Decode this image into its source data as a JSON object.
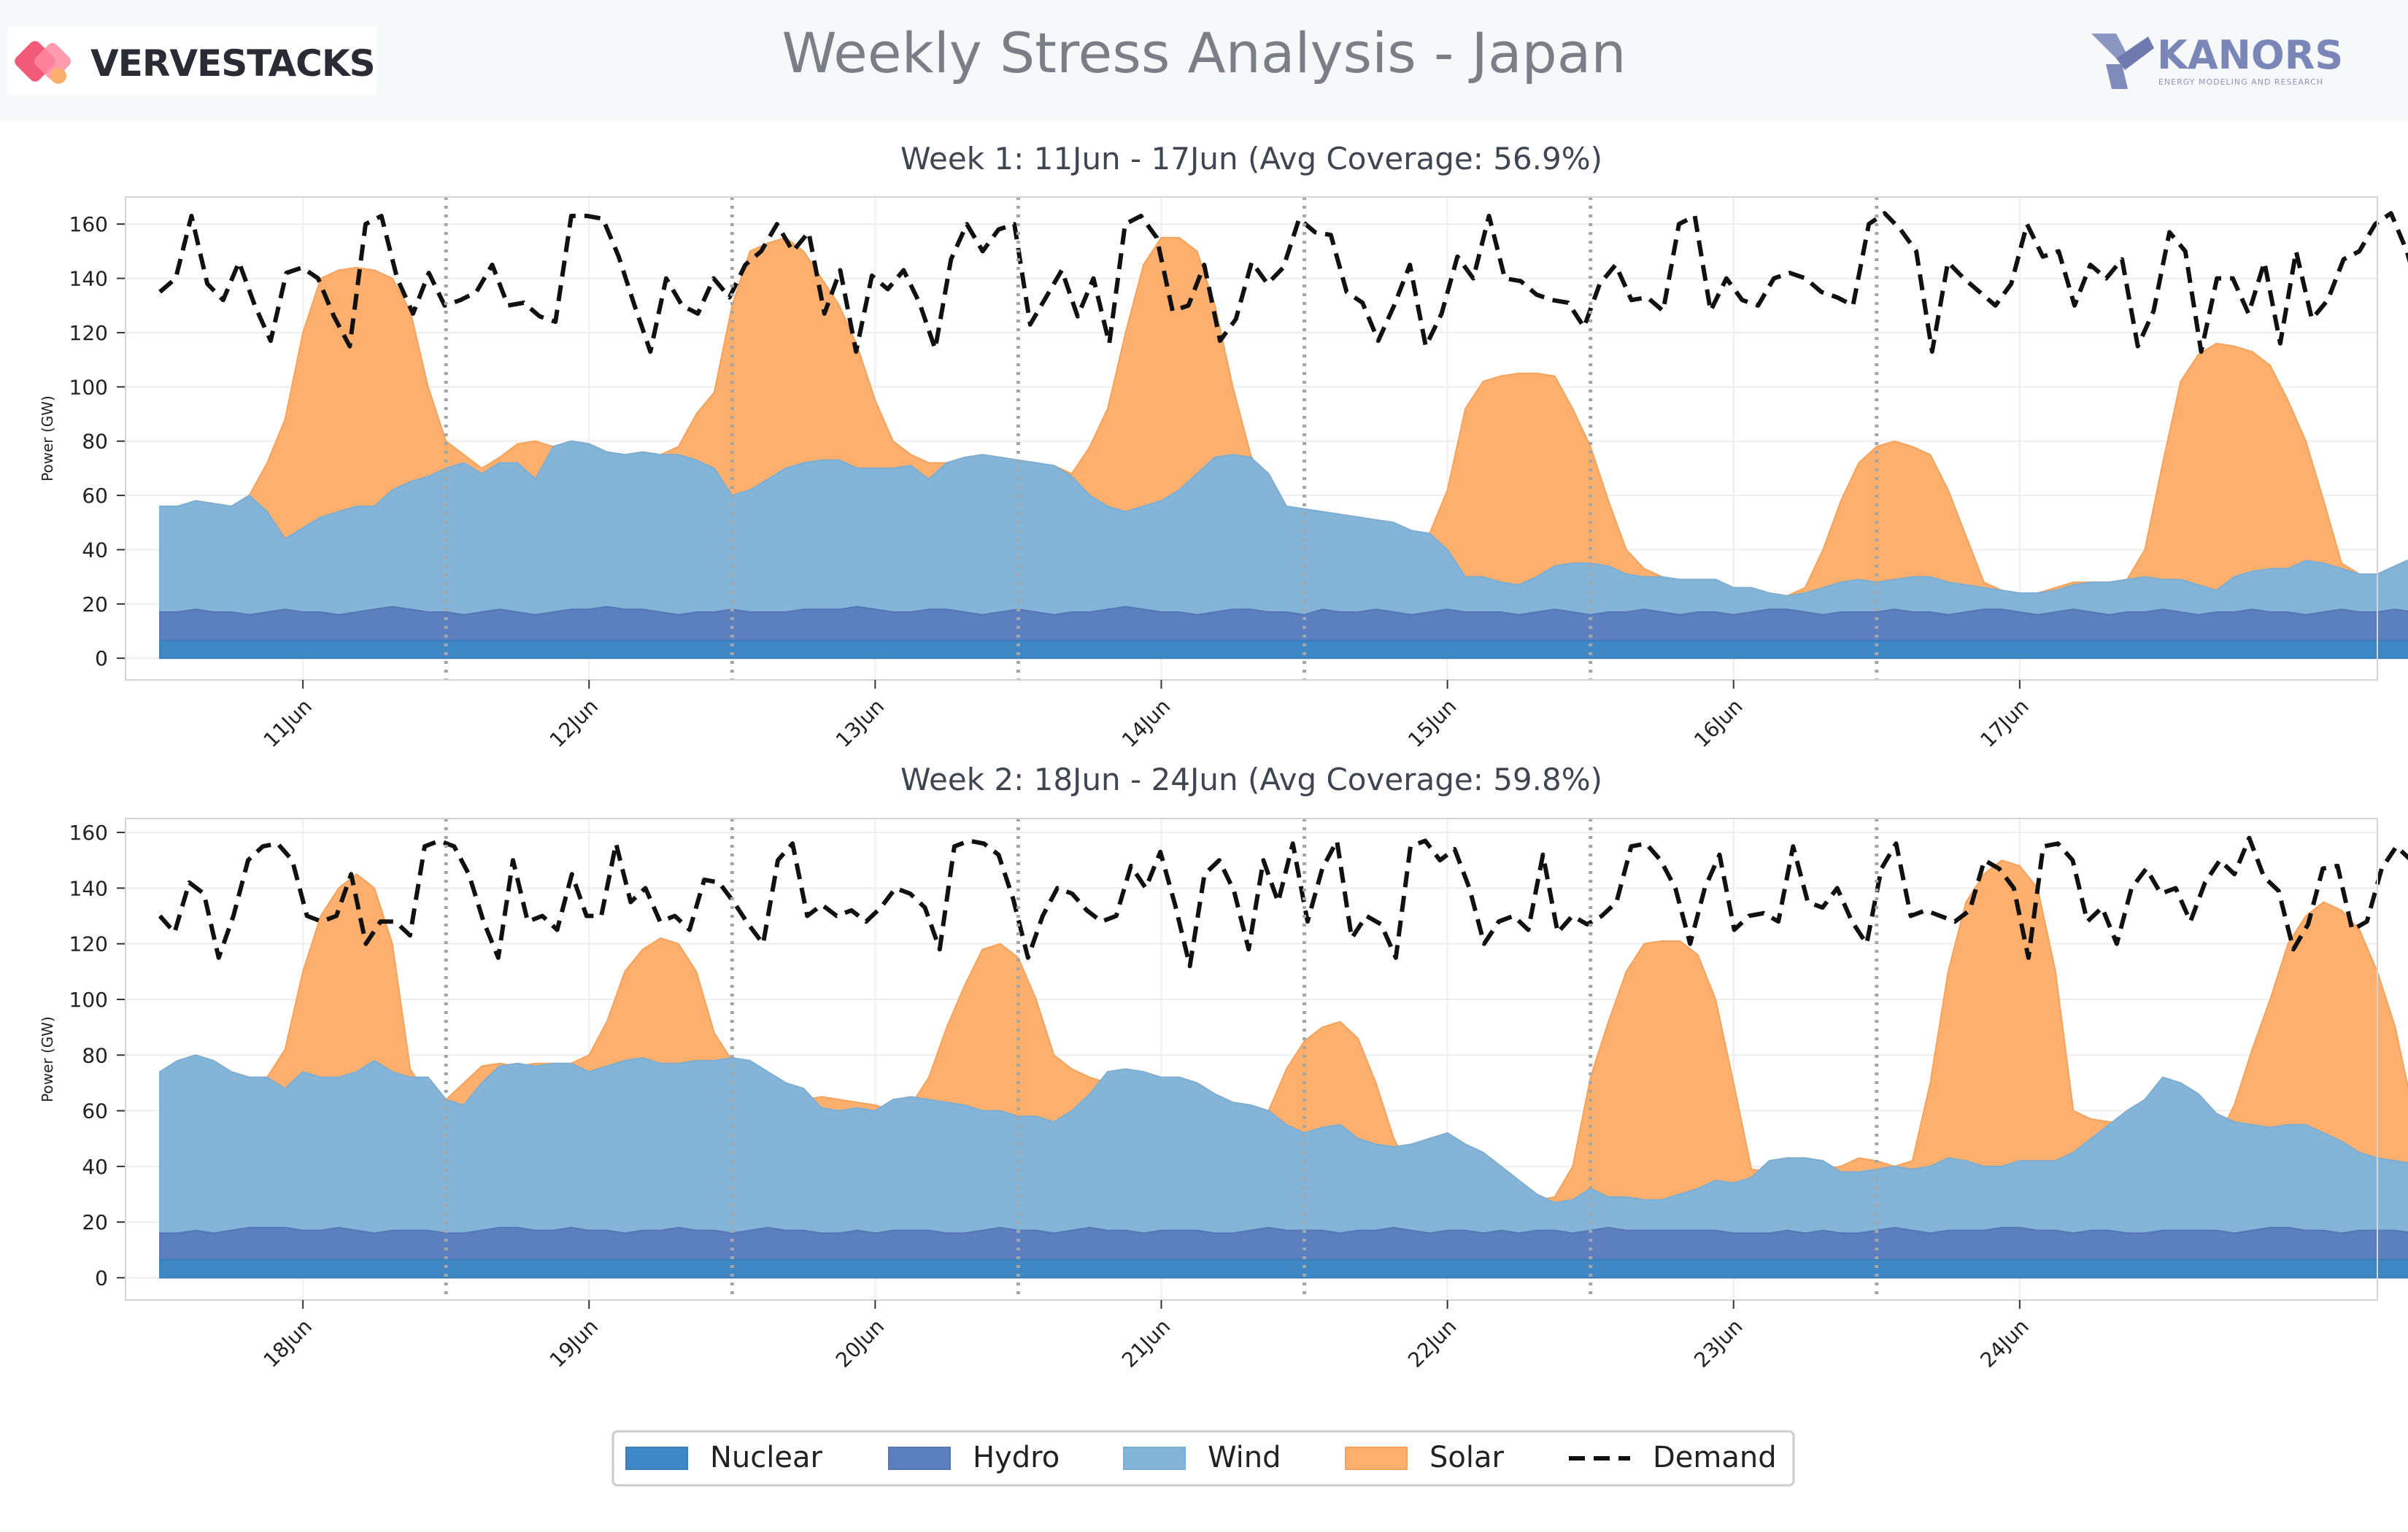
{
  "header": {
    "title": "Weekly Stress Analysis - Japan",
    "left_brand": "VERVESTACKS",
    "right_brand": "KANORS",
    "right_tagline": "ENERGY MODELING AND RESEARCH"
  },
  "colors": {
    "nuclear": "#3f88c5",
    "hydro": "#5b7fbf",
    "wind": "#84b5d9",
    "solar": "#fdb06e",
    "demand": "#111111",
    "grid": "#eeeeee",
    "day_sep": "#a6a6a6"
  },
  "chart_data": [
    {
      "type": "area",
      "title": "Week 1: 11Jun - 17Jun (Avg Coverage: 56.9%)",
      "ylabel": "Power (GW)",
      "ylim": [
        -8,
        170
      ],
      "yticks": [
        0,
        20,
        40,
        60,
        80,
        100,
        120,
        140,
        160
      ],
      "xlim": [
        -0.62,
        7.25
      ],
      "day_labels": [
        "11Jun",
        "12Jun",
        "13Jun",
        "14Jun",
        "15Jun",
        "16Jun",
        "17Jun"
      ],
      "separators": [
        0.5,
        1.5,
        2.5,
        3.5,
        4.5,
        5.5
      ],
      "x_start": -0.5,
      "x_step": 0.0625,
      "nuclear": 6.5,
      "hydro_top": [
        17,
        17,
        18,
        17,
        17,
        16,
        17,
        18,
        17,
        17,
        16,
        17,
        18,
        19,
        18,
        17,
        17,
        16,
        17,
        18,
        17,
        16,
        17,
        18,
        18,
        19,
        18,
        18,
        17,
        16,
        17,
        17,
        18,
        17,
        17,
        17,
        18,
        18,
        18,
        19,
        18,
        17,
        17,
        18,
        18,
        17,
        16,
        17,
        18,
        17,
        16,
        17,
        17,
        18,
        19,
        18,
        17,
        17,
        16,
        17,
        18,
        18,
        17,
        17,
        16,
        18,
        17,
        17,
        18,
        17,
        16,
        17,
        18,
        17,
        17,
        17,
        16,
        17,
        18,
        17,
        16,
        17,
        17,
        18,
        17,
        16,
        17,
        17,
        16,
        17,
        18,
        18,
        17,
        16,
        17,
        17,
        17,
        18,
        17,
        17,
        16,
        17,
        18,
        18,
        17,
        16,
        17,
        18,
        17,
        16,
        17,
        17,
        18,
        17,
        16,
        17,
        17,
        18,
        17,
        17,
        16,
        17,
        18,
        17,
        17,
        18,
        17,
        17,
        16,
        17,
        18
      ],
      "wind_top": [
        56,
        56,
        58,
        57,
        56,
        60,
        54,
        44,
        48,
        52,
        54,
        56,
        56,
        62,
        65,
        67,
        70,
        72,
        68,
        72,
        72,
        66,
        78,
        80,
        79,
        76,
        75,
        76,
        75,
        75,
        73,
        70,
        60,
        62,
        66,
        70,
        72,
        73,
        73,
        70,
        70,
        70,
        71,
        66,
        72,
        74,
        75,
        74,
        73,
        72,
        71,
        67,
        60,
        56,
        54,
        56,
        58,
        62,
        68,
        74,
        75,
        74,
        68,
        56,
        55,
        54,
        53,
        52,
        51,
        50,
        47,
        46,
        40,
        30,
        30,
        28,
        27,
        30,
        34,
        35,
        35,
        34,
        31,
        30,
        30,
        29,
        29,
        29,
        26,
        26,
        24,
        23,
        24,
        26,
        28,
        29,
        28,
        29,
        30,
        30,
        28,
        27,
        26,
        25,
        24,
        24,
        25,
        27,
        28,
        28,
        29,
        30,
        29,
        29,
        27,
        25,
        30,
        32,
        33,
        33,
        36,
        35,
        33,
        31,
        31,
        34,
        37,
        38,
        38,
        39,
        41,
        41,
        34,
        34,
        36,
        34,
        35,
        42,
        46,
        48,
        50,
        53,
        48,
        60,
        64,
        67,
        70
      ],
      "solar_top": [
        56,
        56,
        58,
        57,
        56,
        60,
        72,
        88,
        120,
        140,
        143,
        144,
        143,
        140,
        128,
        100,
        80,
        75,
        70,
        74,
        79,
        80,
        78,
        76,
        75,
        76,
        75,
        76,
        75,
        78,
        90,
        98,
        130,
        150,
        153,
        155,
        150,
        140,
        130,
        115,
        95,
        80,
        75,
        72,
        72,
        74,
        75,
        74,
        72,
        72,
        71,
        68,
        78,
        92,
        120,
        145,
        155,
        155,
        150,
        130,
        100,
        75,
        60,
        56,
        55,
        54,
        53,
        52,
        51,
        50,
        47,
        46,
        62,
        92,
        102,
        104,
        105,
        105,
        104,
        92,
        78,
        58,
        40,
        33,
        30,
        29,
        29,
        29,
        26,
        26,
        24,
        23,
        26,
        40,
        58,
        72,
        78,
        80,
        78,
        75,
        62,
        45,
        28,
        25,
        24,
        24,
        26,
        28,
        28,
        28,
        29,
        40,
        72,
        102,
        112,
        116,
        115,
        113,
        108,
        95,
        80,
        58,
        35,
        31,
        31,
        34,
        37,
        38,
        38,
        39,
        41,
        41,
        60,
        85,
        103,
        115,
        122,
        126,
        122,
        116,
        100,
        80,
        52,
        56,
        64,
        67,
        70
      ],
      "demand": [
        135,
        140,
        163,
        138,
        132,
        146,
        130,
        117,
        142,
        144,
        140,
        126,
        115,
        160,
        163,
        140,
        127,
        142,
        130,
        132,
        135,
        145,
        130,
        131,
        126,
        124,
        163,
        163,
        162,
        148,
        130,
        113,
        140,
        130,
        127,
        140,
        133,
        145,
        150,
        160,
        150,
        157,
        127,
        143,
        113,
        141,
        136,
        143,
        131,
        114,
        147,
        160,
        150,
        158,
        160,
        123,
        133,
        143,
        126,
        140,
        116,
        160,
        163,
        155,
        128,
        130,
        145,
        117,
        125,
        146,
        138,
        144,
        162,
        157,
        156,
        135,
        131,
        117,
        130,
        145,
        115,
        127,
        148,
        140,
        163,
        140,
        139,
        134,
        132,
        131,
        122,
        138,
        145,
        132,
        133,
        128,
        160,
        163,
        128,
        140,
        132,
        130,
        140,
        142,
        140,
        135,
        133,
        130,
        160,
        164,
        158,
        150,
        113,
        146,
        140,
        135,
        130,
        138,
        160,
        148,
        150,
        130,
        145,
        140,
        147,
        115,
        128,
        157,
        150,
        113,
        140,
        140,
        127,
        146,
        116,
        150,
        125,
        132,
        147,
        150,
        160,
        164,
        150,
        130,
        124,
        146,
        125,
        137,
        141,
        145,
        155,
        152,
        131,
        114,
        130,
        141,
        142,
        140,
        113,
        130,
        150,
        144,
        156,
        152,
        128,
        127
      ]
    },
    {
      "type": "area",
      "title": "Week 2: 18Jun - 24Jun (Avg Coverage: 59.8%)",
      "ylabel": "Power (GW)",
      "ylim": [
        -8,
        165
      ],
      "yticks": [
        0,
        20,
        40,
        60,
        80,
        100,
        120,
        140,
        160
      ],
      "xlim": [
        -0.62,
        7.25
      ],
      "day_labels": [
        "18Jun",
        "19Jun",
        "20Jun",
        "21Jun",
        "22Jun",
        "23Jun",
        "24Jun"
      ],
      "separators": [
        0.5,
        1.5,
        2.5,
        3.5,
        4.5,
        5.5
      ],
      "x_start": -0.5,
      "x_step": 0.0625,
      "nuclear": 6.5,
      "hydro_top": [
        16,
        16,
        17,
        16,
        17,
        18,
        18,
        18,
        17,
        17,
        18,
        17,
        16,
        17,
        17,
        17,
        16,
        16,
        17,
        18,
        18,
        17,
        17,
        18,
        17,
        17,
        16,
        17,
        17,
        18,
        17,
        17,
        16,
        17,
        18,
        17,
        17,
        16,
        16,
        17,
        16,
        17,
        17,
        17,
        16,
        16,
        17,
        18,
        17,
        17,
        16,
        17,
        18,
        17,
        17,
        16,
        17,
        17,
        17,
        16,
        16,
        17,
        18,
        17,
        17,
        17,
        16,
        17,
        17,
        18,
        17,
        16,
        17,
        17,
        16,
        17,
        16,
        17,
        17,
        16,
        17,
        18,
        17,
        17,
        17,
        17,
        17,
        17,
        16,
        16,
        16,
        17,
        16,
        17,
        16,
        16,
        17,
        18,
        17,
        16,
        17,
        17,
        17,
        18,
        18,
        17,
        17,
        16,
        17,
        17,
        16,
        16,
        17,
        17,
        17,
        17,
        16,
        17,
        18,
        18,
        17,
        17,
        16,
        17,
        17,
        17,
        16,
        16,
        17,
        18,
        18,
        17,
        17,
        16,
        17,
        17,
        16
      ],
      "wind_top": [
        74,
        78,
        80,
        78,
        74,
        72,
        72,
        68,
        74,
        72,
        72,
        74,
        78,
        74,
        72,
        72,
        64,
        62,
        70,
        76,
        77,
        76,
        77,
        77,
        74,
        76,
        78,
        79,
        77,
        77,
        78,
        78,
        79,
        78,
        74,
        70,
        68,
        61,
        60,
        61,
        60,
        64,
        65,
        64,
        63,
        62,
        60,
        60,
        58,
        58,
        56,
        60,
        66,
        74,
        75,
        74,
        72,
        72,
        70,
        66,
        63,
        62,
        60,
        55,
        52,
        54,
        55,
        50,
        48,
        47,
        48,
        50,
        52,
        48,
        45,
        40,
        35,
        30,
        27,
        28,
        32,
        29,
        29,
        28,
        28,
        30,
        32,
        35,
        34,
        36,
        42,
        43,
        43,
        42,
        38,
        38,
        39,
        40,
        39,
        40,
        43,
        42,
        40,
        40,
        42,
        42,
        42,
        45,
        50,
        55,
        60,
        64,
        72,
        70,
        66,
        59,
        56,
        55,
        54,
        55,
        55,
        52,
        49,
        45,
        43,
        42,
        41,
        40,
        40,
        42,
        48,
        51,
        48,
        46,
        46,
        45,
        42,
        37,
        34,
        33
      ],
      "solar_top": [
        74,
        78,
        80,
        78,
        74,
        72,
        72,
        82,
        110,
        130,
        140,
        145,
        140,
        120,
        75,
        65,
        64,
        70,
        76,
        77,
        76,
        77,
        77,
        77,
        80,
        92,
        110,
        118,
        122,
        120,
        110,
        88,
        78,
        66,
        61,
        60,
        64,
        65,
        64,
        63,
        62,
        60,
        62,
        72,
        90,
        105,
        118,
        120,
        115,
        100,
        80,
        75,
        72,
        70,
        66,
        63,
        62,
        62,
        60,
        58,
        54,
        54,
        60,
        75,
        85,
        90,
        92,
        86,
        70,
        50,
        38,
        30,
        27,
        28,
        32,
        29,
        29,
        28,
        29,
        40,
        72,
        92,
        110,
        120,
        121,
        121,
        116,
        100,
        70,
        39,
        38,
        39,
        40,
        39,
        40,
        43,
        42,
        40,
        42,
        70,
        110,
        135,
        145,
        150,
        148,
        140,
        110,
        60,
        57,
        56,
        55,
        54,
        55,
        55,
        52,
        49,
        62,
        82,
        100,
        120,
        130,
        135,
        132,
        125,
        110,
        90,
        60,
        42,
        37,
        34,
        33
      ],
      "demand": [
        130,
        124,
        142,
        138,
        115,
        130,
        150,
        155,
        156,
        150,
        130,
        128,
        130,
        145,
        120,
        128,
        128,
        123,
        155,
        157,
        155,
        145,
        128,
        115,
        150,
        128,
        130,
        125,
        145,
        130,
        130,
        156,
        135,
        140,
        128,
        130,
        125,
        143,
        142,
        135,
        127,
        120,
        150,
        156,
        130,
        134,
        130,
        132,
        128,
        133,
        140,
        138,
        133,
        118,
        155,
        157,
        156,
        152,
        136,
        115,
        130,
        140,
        138,
        132,
        128,
        130,
        148,
        140,
        153,
        134,
        112,
        145,
        150,
        139,
        118,
        150,
        135,
        156,
        128,
        147,
        157,
        122,
        130,
        127,
        115,
        155,
        157,
        150,
        154,
        140,
        120,
        128,
        130,
        125,
        152,
        124,
        130,
        127,
        130,
        135,
        155,
        156,
        150,
        140,
        120,
        140,
        152,
        125,
        130,
        131,
        128,
        155,
        135,
        133,
        140,
        128,
        120,
        147,
        156,
        130,
        132,
        130,
        128,
        132,
        150,
        147,
        140,
        115,
        155,
        156,
        150,
        128,
        133,
        120,
        140,
        147,
        138,
        140,
        128,
        142,
        150,
        145,
        158,
        144,
        139,
        118,
        127,
        147,
        148,
        125,
        128,
        147,
        155,
        150,
        152,
        153,
        155,
        124,
        128
      ]
    }
  ],
  "legend": [
    "Nuclear",
    "Hydro",
    "Wind",
    "Solar",
    "Demand"
  ]
}
